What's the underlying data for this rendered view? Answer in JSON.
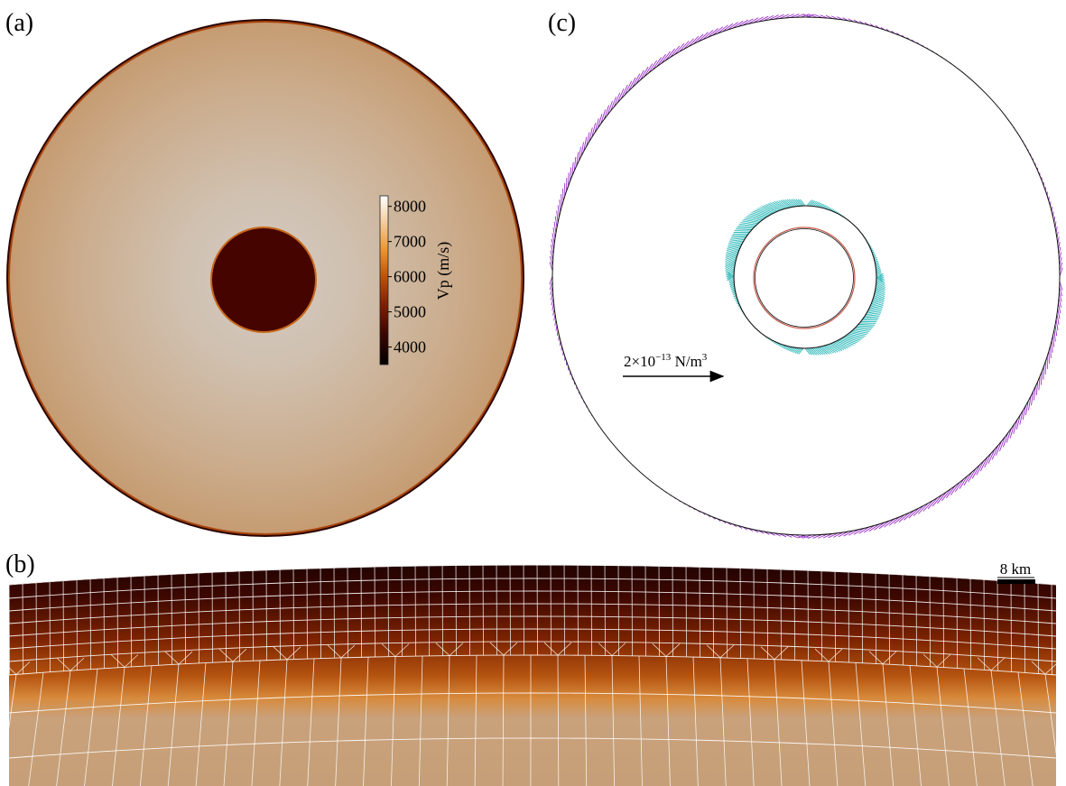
{
  "panels": {
    "a": {
      "label": "(a)"
    },
    "b": {
      "label": "(b)"
    },
    "c": {
      "label": "(c)"
    }
  },
  "colorbar": {
    "title": "Vp (m/s)",
    "ticks": [
      "8000",
      "7000",
      "6000",
      "5000",
      "4000"
    ],
    "tick_values": [
      8000,
      7000,
      6000,
      5000,
      4000
    ],
    "range": [
      3500,
      8300
    ],
    "colormap": [
      "#000000",
      "#4a0600",
      "#8a2a00",
      "#c25a0c",
      "#e8902a",
      "#f2c890",
      "#ffffff"
    ]
  },
  "vector_legend": {
    "prefix": "2×10",
    "exponent": "−13",
    "unit": " N/m",
    "unit_exponent": "3"
  },
  "scale_bar": {
    "label": "8 km"
  },
  "colors": {
    "mantle": "#c9a683",
    "core": "#450400",
    "outer_arrows": "#9a30c8",
    "inner_arrows": "#2ab8b8"
  }
}
